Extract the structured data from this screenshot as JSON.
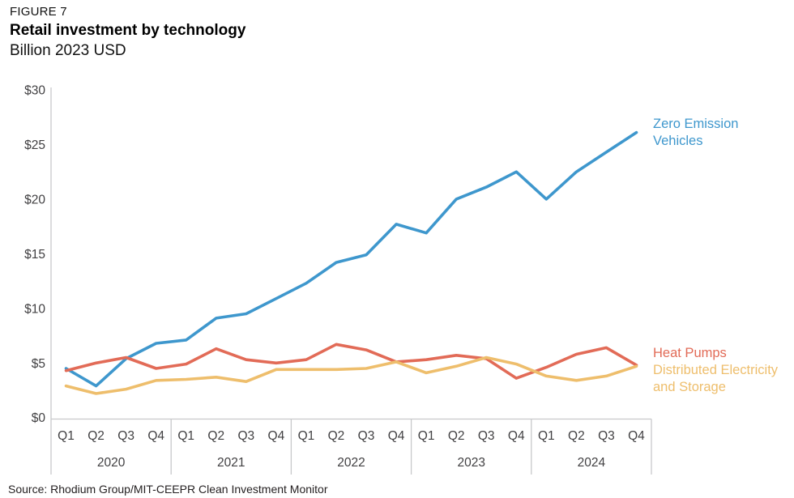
{
  "header": {
    "figure_label": "FIGURE 7",
    "title": "Retail investment by technology",
    "subtitle": "Billion 2023 USD"
  },
  "source": {
    "text": "Source: Rhodium Group/MIT-CEEPR Clean Investment Monitor"
  },
  "legend": {
    "zev": "Zero Emission Vehicles",
    "heat_pumps": "Heat Pumps",
    "distributed": "Distributed Electricity and Storage"
  },
  "colors": {
    "zev": "#3e97cd",
    "heat_pumps": "#e26b57",
    "distributed": "#eebe6c",
    "axis_text": "#414042",
    "axis_line": "#c8c9cb"
  },
  "chart_data": {
    "type": "line",
    "title": "Retail investment by technology",
    "ylabel": "Billion 2023 USD",
    "grid": "none",
    "legend_position": "right of line ends",
    "x_categories": {
      "years": [
        "2020",
        "2021",
        "2022",
        "2023",
        "2024"
      ],
      "quarters": [
        "Q1",
        "Q2",
        "Q3",
        "Q4"
      ]
    },
    "y_axis": {
      "ticks": [
        "$0",
        "$5",
        "$10",
        "$15",
        "$20",
        "$25",
        "$30"
      ],
      "tick_values": [
        0,
        5,
        10,
        15,
        20,
        25,
        30
      ],
      "min": 0,
      "max": 30
    },
    "series": [
      {
        "name": "Zero Emission Vehicles",
        "color": "#3e97cd",
        "values": [
          4.5,
          2.9,
          5.4,
          6.8,
          7.1,
          9.1,
          9.5,
          10.9,
          12.3,
          14.2,
          14.9,
          17.7,
          16.9,
          20.0,
          21.1,
          22.5,
          20.0,
          22.5,
          24.3,
          26.1
        ]
      },
      {
        "name": "Heat Pumps",
        "color": "#e26b57",
        "values": [
          4.3,
          5.0,
          5.5,
          4.5,
          4.9,
          6.3,
          5.3,
          5.0,
          5.3,
          6.7,
          6.2,
          5.1,
          5.3,
          5.7,
          5.4,
          3.6,
          4.6,
          5.8,
          6.4,
          4.8
        ]
      },
      {
        "name": "Distributed Electricity and Storage",
        "color": "#eebe6c",
        "values": [
          2.9,
          2.2,
          2.6,
          3.4,
          3.5,
          3.7,
          3.3,
          4.4,
          4.4,
          4.4,
          4.5,
          5.1,
          4.1,
          4.7,
          5.5,
          4.9,
          3.8,
          3.4,
          3.8,
          4.7
        ]
      }
    ]
  }
}
